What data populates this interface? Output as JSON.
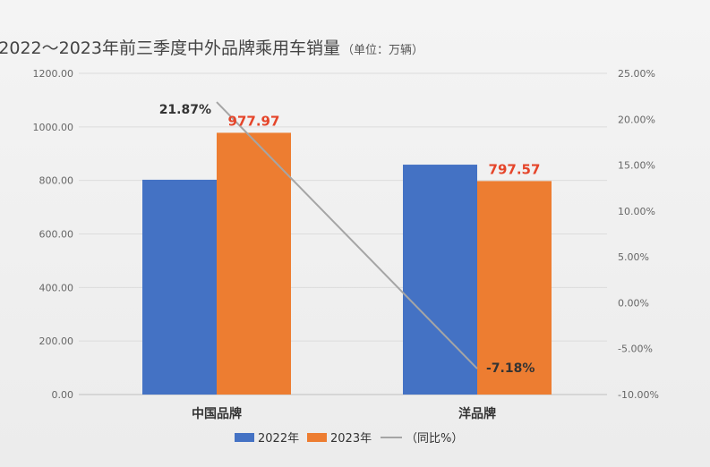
{
  "chart_data": {
    "type": "bar",
    "title": "2022～2023年前三季度中外品牌乘用车销量",
    "title_unit": "（单位：万辆）",
    "categories": [
      "中国品牌",
      "洋品牌"
    ],
    "series": [
      {
        "name": "2022年",
        "values": [
          802.5,
          858.9
        ],
        "color": "#4472c4",
        "axis": "left"
      },
      {
        "name": "2023年",
        "values": [
          977.97,
          797.57
        ],
        "color": "#ed7d31",
        "axis": "left"
      },
      {
        "name": "（同比%）",
        "type": "line",
        "values": [
          21.87,
          -7.18
        ],
        "color": "#a5a5a5",
        "axis": "right"
      }
    ],
    "data_labels": {
      "bar_2023": [
        "977.97",
        "797.57"
      ],
      "line": [
        "21.87%",
        "-7.18%"
      ]
    },
    "y_left": {
      "lim": [
        0,
        1200
      ],
      "ticks": [
        0,
        200,
        400,
        600,
        800,
        1000,
        1200
      ],
      "tick_labels": [
        "0.00",
        "200.00",
        "400.00",
        "600.00",
        "800.00",
        "1000.00",
        "1200.00"
      ]
    },
    "y_right": {
      "lim": [
        -10,
        25
      ],
      "ticks": [
        -10,
        -5,
        0,
        5,
        10,
        15,
        20,
        25
      ],
      "tick_labels": [
        "-10.00%",
        "-5.00%",
        "0.00%",
        "5.00%",
        "10.00%",
        "15.00%",
        "20.00%",
        "25.00%"
      ]
    },
    "grid": true,
    "legend_position": "bottom"
  }
}
